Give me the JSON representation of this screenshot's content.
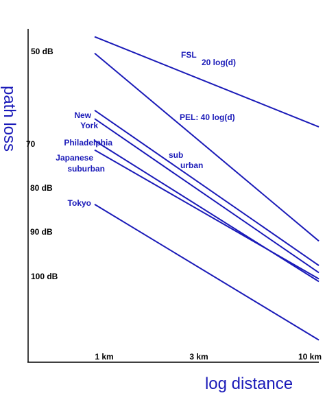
{
  "chart_data": {
    "type": "line",
    "xlabel": "log distance",
    "ylabel": "path loss",
    "x_scale": "log",
    "y_direction": "downward increasing",
    "grid": false,
    "x_ticks": [
      {
        "value": 1,
        "label": "1 km"
      },
      {
        "value": 3,
        "label": "3 km"
      },
      {
        "value": 10,
        "label": "10 km"
      }
    ],
    "y_ticks": [
      {
        "value": 50,
        "label": "50 dB"
      },
      {
        "value": 70,
        "label": "70"
      },
      {
        "value": 80,
        "label": "80 dB"
      },
      {
        "value": 90,
        "label": "90 dB"
      },
      {
        "value": 100,
        "label": "100 dB"
      }
    ],
    "series": [
      {
        "name": "FSL",
        "annotation": "20 log(d)",
        "points": [
          [
            1,
            46.7
          ],
          [
            10,
            66.9
          ]
        ]
      },
      {
        "name": "PEL: 40 log(d)",
        "points": [
          [
            1,
            50.4
          ],
          [
            10,
            92.5
          ]
        ]
      },
      {
        "name": "New York",
        "points": [
          [
            1,
            63.2
          ],
          [
            10,
            98.0
          ]
        ]
      },
      {
        "name": "Philadelphia",
        "points": [
          [
            1,
            70.0
          ],
          [
            10,
            101.6
          ]
        ]
      },
      {
        "name": "Japanese suburban",
        "points": [
          [
            1,
            72.1
          ],
          [
            10,
            101.0
          ]
        ]
      },
      {
        "name": "sub urban",
        "points": [
          [
            1,
            65.1
          ],
          [
            10,
            99.6
          ]
        ]
      },
      {
        "name": "Tokyo",
        "points": [
          [
            1,
            84.3
          ],
          [
            10,
            114.7
          ]
        ]
      }
    ],
    "labels": [
      {
        "text": "FSL",
        "kind": "series"
      },
      {
        "text": "20 log(d)",
        "kind": "series"
      },
      {
        "text": "PEL: 40 log(d)",
        "kind": "series"
      },
      {
        "text": "New",
        "kind": "series"
      },
      {
        "text": "York",
        "kind": "series"
      },
      {
        "text": "Philadelphia",
        "kind": "series"
      },
      {
        "text": "Japanese",
        "kind": "series"
      },
      {
        "text": "suburban",
        "kind": "series"
      },
      {
        "text": "sub",
        "kind": "series"
      },
      {
        "text": "urban",
        "kind": "series"
      },
      {
        "text": "Tokyo",
        "kind": "series"
      }
    ],
    "colors": {
      "series": "#1a1ab8",
      "axis": "#000000",
      "ticks": "#000000",
      "axis_title": "#1a1ab8"
    }
  }
}
